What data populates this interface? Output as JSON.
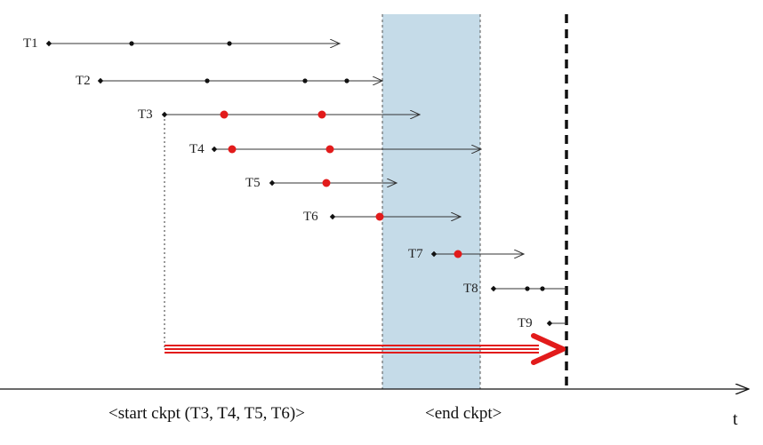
{
  "colors": {
    "checkpoint_band": "#c5dbe8",
    "active_dot": "#e21b1b",
    "redo_arrow": "#e21b1b",
    "line": "#333333",
    "crash_line": "#111111"
  },
  "transactions": [
    {
      "label": "T1",
      "start": 1,
      "ops": [
        2,
        3
      ],
      "end": 5,
      "terminates": "arrow",
      "active_ops": []
    },
    {
      "label": "T2",
      "start": 2,
      "ops": [
        4,
        6,
        7
      ],
      "end": 8,
      "terminates": "arrow",
      "active_ops": []
    },
    {
      "label": "T3",
      "start": 3,
      "ops": [
        5,
        7
      ],
      "end": 10,
      "terminates": "arrow",
      "active_ops": [
        5,
        7
      ]
    },
    {
      "label": "T4",
      "start": 4,
      "ops": [
        4.5,
        6.5
      ],
      "end": 11,
      "terminates": "arrow",
      "active_ops": [
        4.5,
        6.5
      ]
    },
    {
      "label": "T5",
      "start": 5,
      "ops": [
        6.5
      ],
      "end": 9,
      "terminates": "arrow",
      "active_ops": [
        6.5
      ]
    },
    {
      "label": "T6",
      "start": 6,
      "ops": [
        7.5
      ],
      "end": 10,
      "terminates": "arrow",
      "active_ops": [
        7.5
      ]
    },
    {
      "label": "T7",
      "start": 9,
      "ops": [
        10
      ],
      "end": 11.5,
      "terminates": "arrow",
      "active_ops": [
        10
      ]
    },
    {
      "label": "T8",
      "start": 11,
      "ops": [
        11.5,
        12
      ],
      "end": 12.5,
      "terminates": "crash",
      "active_ops": []
    },
    {
      "label": "T9",
      "start": 12,
      "ops": [],
      "end": 12.5,
      "terminates": "crash",
      "active_ops": []
    }
  ],
  "checkpoint": {
    "start_label": "<start ckpt (T3, T4, T5, T6)>",
    "end_label": "<end ckpt>"
  },
  "axis": {
    "label": "t"
  }
}
